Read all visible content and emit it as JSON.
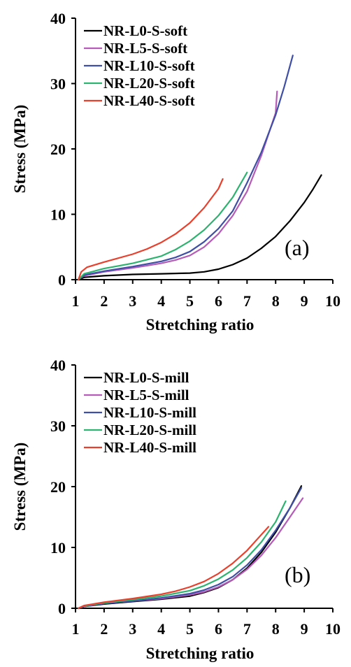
{
  "chart_data": [
    {
      "type": "line",
      "panel_label": "(a)",
      "xlabel": "Stretching ratio",
      "ylabel": "Stress (MPa)",
      "xlim": [
        1,
        10
      ],
      "ylim": [
        0,
        40
      ],
      "xticks": [
        "1",
        "2",
        "3",
        "4",
        "5",
        "6",
        "7",
        "8",
        "9",
        "10"
      ],
      "yticks": [
        "0",
        "10",
        "20",
        "30",
        "40"
      ],
      "grid": false,
      "legend_position": "top-left",
      "series": [
        {
          "name": "NR-L0-S-soft",
          "color": "#000000",
          "points": [
            [
              1.1,
              0
            ],
            [
              1.3,
              0.35
            ],
            [
              2,
              0.6
            ],
            [
              3,
              0.8
            ],
            [
              4,
              0.9
            ],
            [
              5,
              1.0
            ],
            [
              5.5,
              1.2
            ],
            [
              6,
              1.6
            ],
            [
              6.5,
              2.3
            ],
            [
              7,
              3.3
            ],
            [
              7.5,
              4.8
            ],
            [
              8,
              6.6
            ],
            [
              8.5,
              9.0
            ],
            [
              9,
              11.8
            ],
            [
              9.3,
              13.8
            ],
            [
              9.6,
              16.0
            ]
          ]
        },
        {
          "name": "NR-L5-S-soft",
          "color": "#B55BB8",
          "points": [
            [
              1.1,
              0
            ],
            [
              1.3,
              0.6
            ],
            [
              2,
              1.2
            ],
            [
              3,
              1.8
            ],
            [
              4,
              2.5
            ],
            [
              4.5,
              3.0
            ],
            [
              5,
              3.7
            ],
            [
              5.5,
              5.0
            ],
            [
              6,
              7.0
            ],
            [
              6.5,
              9.8
            ],
            [
              7,
              13.5
            ],
            [
              7.5,
              19.0
            ],
            [
              8,
              25.5
            ],
            [
              8.05,
              28.8
            ]
          ]
        },
        {
          "name": "NR-L10-S-soft",
          "color": "#3F4FA5",
          "points": [
            [
              1.1,
              0
            ],
            [
              1.3,
              0.7
            ],
            [
              2,
              1.3
            ],
            [
              3,
              2.0
            ],
            [
              4,
              2.8
            ],
            [
              4.5,
              3.4
            ],
            [
              5,
              4.3
            ],
            [
              5.5,
              5.8
            ],
            [
              6,
              7.8
            ],
            [
              6.5,
              10.5
            ],
            [
              7,
              14.8
            ],
            [
              7.5,
              19.5
            ],
            [
              8,
              25.2
            ],
            [
              8.3,
              29.5
            ],
            [
              8.6,
              34.3
            ]
          ]
        },
        {
          "name": "NR-L20-S-soft",
          "color": "#2DB36F",
          "points": [
            [
              1.1,
              0
            ],
            [
              1.3,
              0.9
            ],
            [
              2,
              1.7
            ],
            [
              3,
              2.5
            ],
            [
              4,
              3.6
            ],
            [
              4.5,
              4.6
            ],
            [
              5,
              5.9
            ],
            [
              5.5,
              7.6
            ],
            [
              6,
              9.8
            ],
            [
              6.5,
              12.6
            ],
            [
              7,
              16.4
            ]
          ]
        },
        {
          "name": "NR-L40-S-soft",
          "color": "#E8402C",
          "points": [
            [
              1.1,
              0
            ],
            [
              1.2,
              1.2
            ],
            [
              1.4,
              1.9
            ],
            [
              2,
              2.7
            ],
            [
              3,
              3.9
            ],
            [
              3.5,
              4.7
            ],
            [
              4,
              5.7
            ],
            [
              4.5,
              7.0
            ],
            [
              5,
              8.7
            ],
            [
              5.5,
              11.0
            ],
            [
              6,
              13.9
            ],
            [
              6.15,
              15.4
            ]
          ]
        }
      ]
    },
    {
      "type": "line",
      "panel_label": "(b)",
      "xlabel": "Stretching ratio",
      "ylabel": "Stress (MPa)",
      "xlim": [
        1,
        10
      ],
      "ylim": [
        0,
        40
      ],
      "xticks": [
        "1",
        "2",
        "3",
        "4",
        "5",
        "6",
        "7",
        "8",
        "9",
        "10"
      ],
      "yticks": [
        "0",
        "10",
        "20",
        "30",
        "40"
      ],
      "grid": false,
      "legend_position": "top-left",
      "series": [
        {
          "name": "NR-L0-S-mill",
          "color": "#000000",
          "points": [
            [
              1.1,
              0
            ],
            [
              1.3,
              0.3
            ],
            [
              2,
              0.7
            ],
            [
              3,
              1.1
            ],
            [
              4,
              1.5
            ],
            [
              5,
              2.0
            ],
            [
              5.5,
              2.6
            ],
            [
              6,
              3.4
            ],
            [
              6.5,
              4.7
            ],
            [
              7,
              6.6
            ],
            [
              7.5,
              9.2
            ],
            [
              8,
              12.5
            ],
            [
              8.5,
              16.5
            ],
            [
              8.9,
              20.1
            ]
          ]
        },
        {
          "name": "NR-L5-S-mill",
          "color": "#B55BB8",
          "points": [
            [
              1.1,
              0
            ],
            [
              1.3,
              0.3
            ],
            [
              2,
              0.8
            ],
            [
              3,
              1.2
            ],
            [
              4,
              1.6
            ],
            [
              5,
              2.2
            ],
            [
              5.5,
              2.7
            ],
            [
              6,
              3.5
            ],
            [
              6.5,
              4.7
            ],
            [
              7,
              6.4
            ],
            [
              7.5,
              8.7
            ],
            [
              8,
              11.6
            ],
            [
              8.5,
              15.0
            ],
            [
              8.95,
              18.1
            ]
          ]
        },
        {
          "name": "NR-L10-S-mill",
          "color": "#3F4FA5",
          "points": [
            [
              1.1,
              0
            ],
            [
              1.3,
              0.35
            ],
            [
              2,
              0.8
            ],
            [
              3,
              1.2
            ],
            [
              4,
              1.7
            ],
            [
              5,
              2.4
            ],
            [
              5.5,
              3.0
            ],
            [
              6,
              3.9
            ],
            [
              6.5,
              5.2
            ],
            [
              7,
              7.1
            ],
            [
              7.5,
              9.6
            ],
            [
              8,
              12.8
            ],
            [
              8.5,
              16.5
            ],
            [
              8.9,
              19.8
            ]
          ]
        },
        {
          "name": "NR-L20-S-mill",
          "color": "#2DB36F",
          "points": [
            [
              1.1,
              0
            ],
            [
              1.3,
              0.4
            ],
            [
              2,
              0.9
            ],
            [
              3,
              1.4
            ],
            [
              4,
              2.0
            ],
            [
              5,
              2.9
            ],
            [
              5.5,
              3.7
            ],
            [
              6,
              4.8
            ],
            [
              6.5,
              6.3
            ],
            [
              7,
              8.3
            ],
            [
              7.5,
              10.9
            ],
            [
              8,
              14.2
            ],
            [
              8.35,
              17.6
            ]
          ]
        },
        {
          "name": "NR-L40-S-mill",
          "color": "#E8402C",
          "points": [
            [
              1.1,
              0
            ],
            [
              1.3,
              0.45
            ],
            [
              2,
              1.0
            ],
            [
              3,
              1.6
            ],
            [
              4,
              2.3
            ],
            [
              4.5,
              2.8
            ],
            [
              5,
              3.5
            ],
            [
              5.5,
              4.4
            ],
            [
              6,
              5.7
            ],
            [
              6.5,
              7.4
            ],
            [
              7,
              9.5
            ],
            [
              7.5,
              12.1
            ],
            [
              7.75,
              13.4
            ]
          ]
        }
      ]
    }
  ]
}
